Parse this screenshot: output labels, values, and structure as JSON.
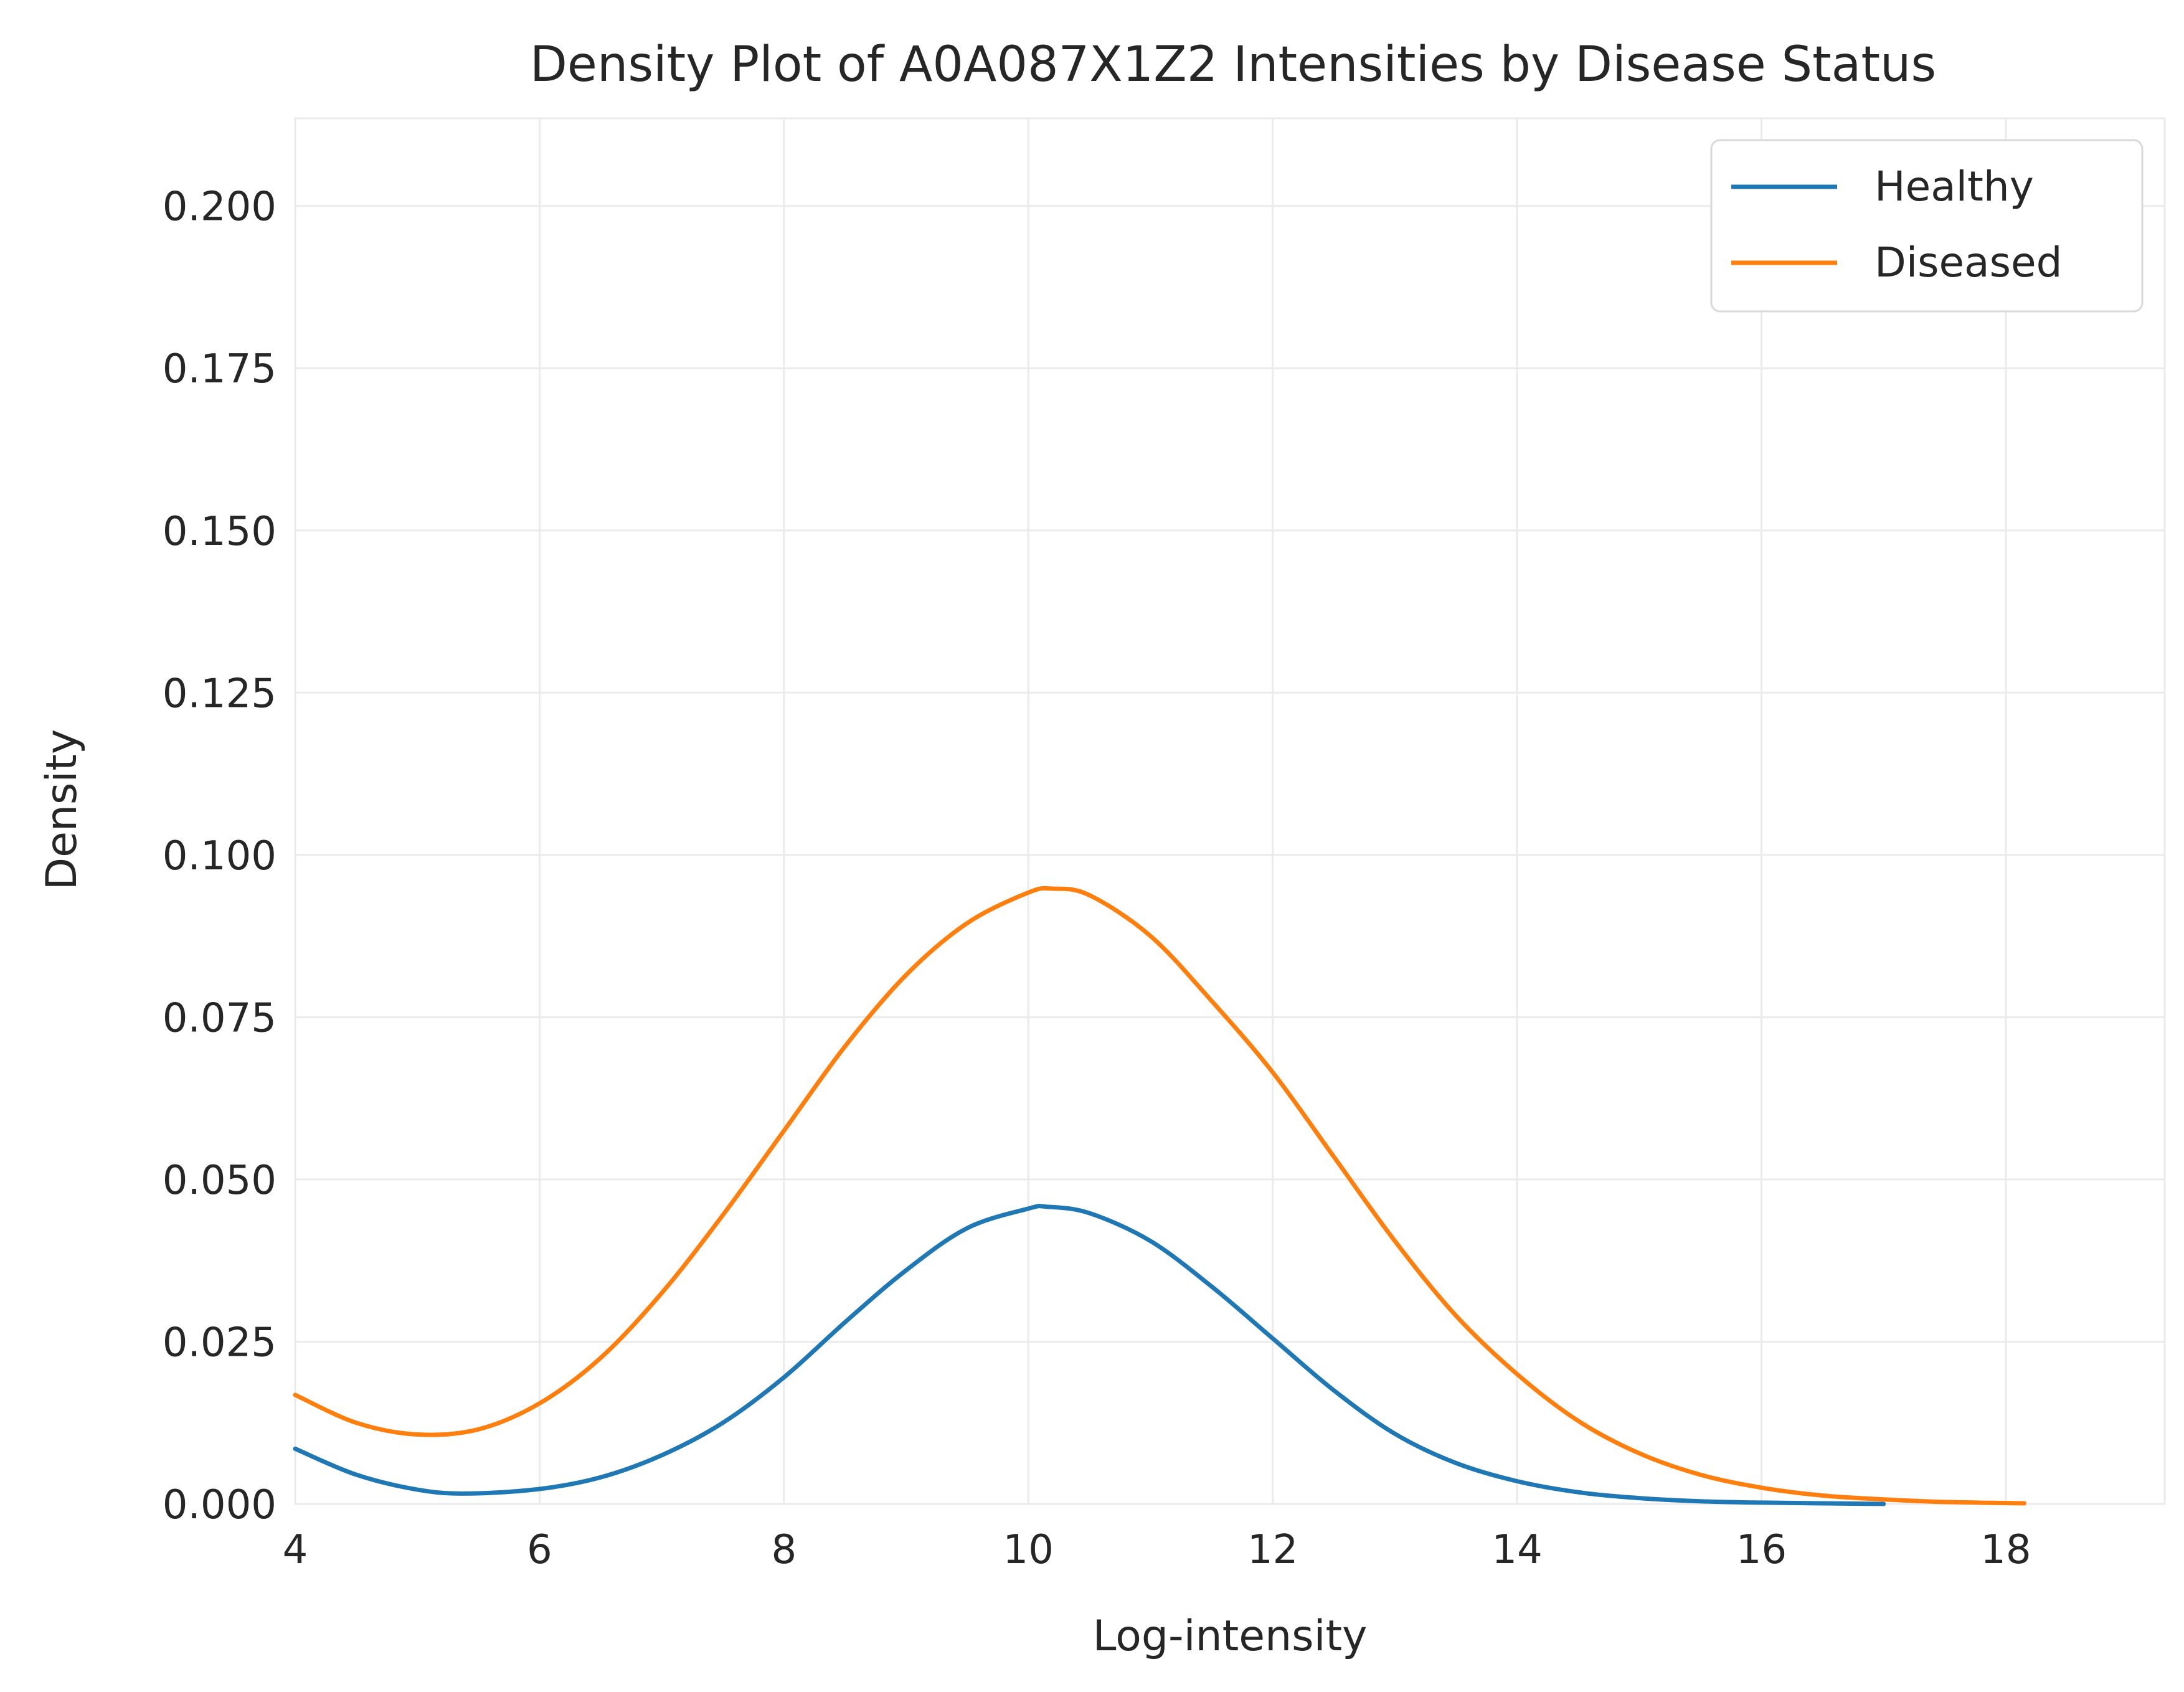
{
  "chart_data": {
    "type": "line",
    "title": "Density Plot of A0A087X1Z2 Intensities by Disease Status",
    "xlabel": "Log-intensity",
    "ylabel": "Density",
    "xlim": [
      4,
      19.3
    ],
    "ylim": [
      0,
      0.2135
    ],
    "xticks": [
      4,
      6,
      8,
      10,
      12,
      14,
      16,
      18
    ],
    "xtick_labels": [
      "4",
      "6",
      "8",
      "10",
      "12",
      "14",
      "16",
      "18"
    ],
    "yticks": [
      0,
      0.025,
      0.05,
      0.075,
      0.1,
      0.125,
      0.15,
      0.175,
      0.2
    ],
    "ytick_labels": [
      "0.000",
      "0.025",
      "0.050",
      "0.075",
      "0.100",
      "0.125",
      "0.150",
      "0.175",
      "0.200"
    ],
    "grid": true,
    "legend_position": "top-right",
    "series": [
      {
        "name": "Healthy",
        "color": "#1f77b4",
        "x": [
          4.0,
          4.5,
          5.0,
          5.4,
          6.0,
          6.5,
          7.0,
          7.5,
          8.0,
          8.5,
          9.0,
          9.5,
          10.0,
          10.15,
          10.5,
          11.0,
          11.5,
          12.0,
          12.5,
          13.0,
          13.5,
          14.0,
          14.5,
          15.0,
          15.5,
          16.0,
          16.5,
          17.0
        ],
        "y": [
          0.0085,
          0.0045,
          0.0022,
          0.0016,
          0.0023,
          0.0041,
          0.0075,
          0.0125,
          0.0195,
          0.028,
          0.036,
          0.0425,
          0.0455,
          0.0458,
          0.0448,
          0.0405,
          0.0335,
          0.0255,
          0.0175,
          0.0108,
          0.0063,
          0.0035,
          0.0018,
          0.0009,
          0.0004,
          0.0002,
          0.0001,
          0.0
        ]
      },
      {
        "name": "Diseased",
        "color": "#ff7f0e",
        "x": [
          4.0,
          4.5,
          5.0,
          5.5,
          6.0,
          6.5,
          7.0,
          7.5,
          8.0,
          8.5,
          9.0,
          9.5,
          10.0,
          10.2,
          10.5,
          11.0,
          11.5,
          12.0,
          12.5,
          13.0,
          13.5,
          14.0,
          14.5,
          15.0,
          15.5,
          16.0,
          16.5,
          17.0,
          17.5,
          18.15
        ],
        "y": [
          0.0168,
          0.0125,
          0.0107,
          0.0115,
          0.0155,
          0.0225,
          0.0325,
          0.0445,
          0.0575,
          0.0705,
          0.0815,
          0.0895,
          0.0942,
          0.0948,
          0.0938,
          0.0875,
          0.0775,
          0.0665,
          0.0535,
          0.0405,
          0.029,
          0.02,
          0.0128,
          0.0078,
          0.0045,
          0.0025,
          0.0013,
          0.0007,
          0.0003,
          0.0001
        ]
      }
    ]
  }
}
